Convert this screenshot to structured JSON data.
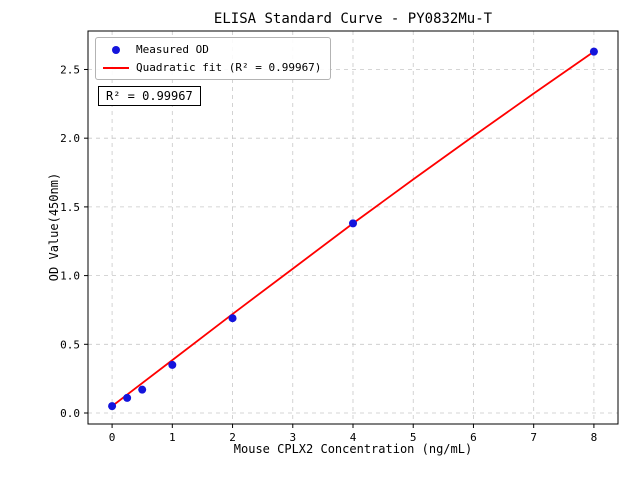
{
  "chart_data": {
    "type": "scatter",
    "title": "ELISA Standard Curve - PY0832Mu-T",
    "xlabel": "Mouse CPLX2 Concentration (ng/mL)",
    "ylabel": "OD Value(450nm)",
    "xlim": [
      -0.4,
      8.4
    ],
    "ylim": [
      -0.08,
      2.78
    ],
    "x_ticks": [
      "0",
      "1",
      "2",
      "3",
      "4",
      "5",
      "6",
      "7",
      "8"
    ],
    "y_ticks": [
      "0.0",
      "0.5",
      "1.0",
      "1.5",
      "2.0",
      "2.5"
    ],
    "grid": true,
    "grid_style": "dashed",
    "grid_color": "#c8c8c8",
    "annotation": "R² = 0.99967",
    "legend": {
      "position": "upper-left",
      "entries": [
        {
          "label": "Measured OD",
          "marker": "circle",
          "color": "#1414dc"
        },
        {
          "label": "Quadratic fit (R² = 0.99967)",
          "marker": "line",
          "color": "#ff0000"
        }
      ]
    },
    "series": [
      {
        "name": "Quadratic fit",
        "type": "line",
        "color": "#ff0000",
        "points": [
          [
            0,
            0.05
          ],
          [
            1,
            0.385
          ],
          [
            2,
            0.72
          ],
          [
            3,
            1.05
          ],
          [
            4,
            1.38
          ],
          [
            5,
            1.7
          ],
          [
            6,
            2.015
          ],
          [
            7,
            2.325
          ],
          [
            8,
            2.63
          ]
        ]
      },
      {
        "name": "Measured OD",
        "type": "scatter",
        "color": "#1414dc",
        "points": [
          [
            0,
            0.05
          ],
          [
            0.25,
            0.11
          ],
          [
            0.5,
            0.17
          ],
          [
            1,
            0.35
          ],
          [
            2,
            0.69
          ],
          [
            4,
            1.38
          ],
          [
            8,
            2.63
          ]
        ]
      }
    ]
  }
}
